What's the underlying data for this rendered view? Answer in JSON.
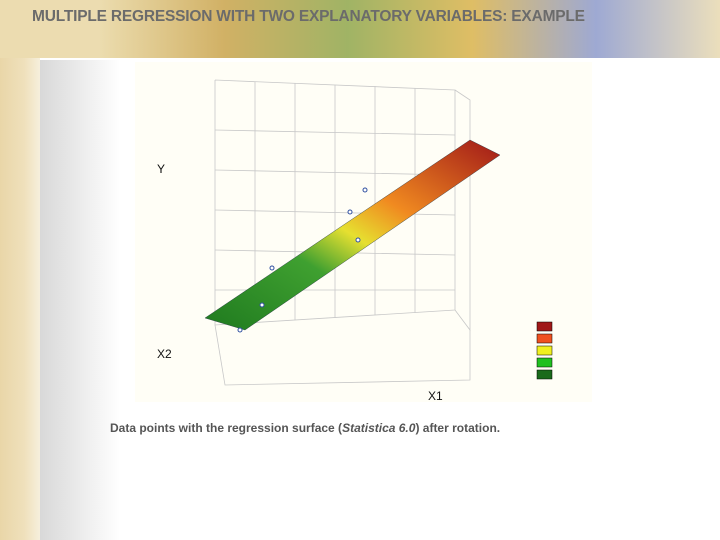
{
  "header": {
    "title": "MULTIPLE REGRESSION WITH TWO EXPLANATORY VARIABLES: EXAMPLE"
  },
  "figure": {
    "axis_labels": {
      "y": "Y",
      "x2": "X2",
      "x1": "X1"
    }
  },
  "caption": {
    "parts": [
      "Data points with the regression surface (",
      "Statistica 6.0",
      ") after rotation."
    ]
  }
}
